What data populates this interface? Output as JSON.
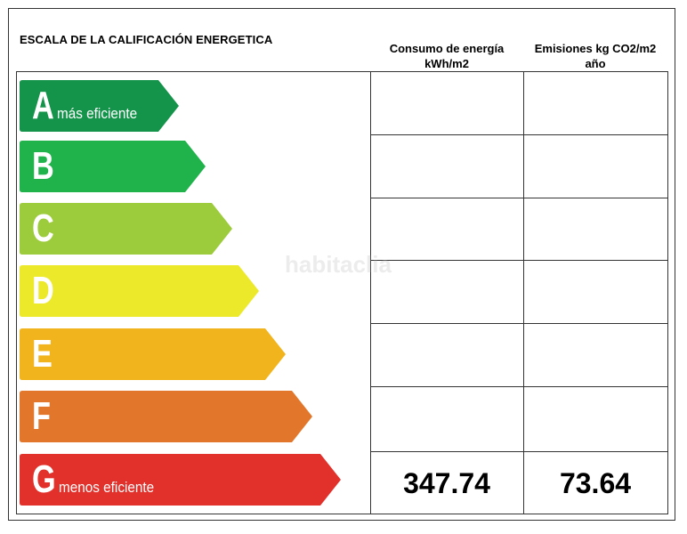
{
  "title": "ESCALA DE LA CALIFICACIÓN ENERGETICA",
  "headers": {
    "consumo": "Consumo de energía kWh/m2",
    "emisiones": "Emisiones kg CO2/m2 año"
  },
  "bands": [
    {
      "letter": "A",
      "sub": "más eficiente",
      "color": "#14934a"
    },
    {
      "letter": "B",
      "sub": "",
      "color": "#20b24b"
    },
    {
      "letter": "C",
      "sub": "",
      "color": "#9ccb3b"
    },
    {
      "letter": "D",
      "sub": "",
      "color": "#ece82a"
    },
    {
      "letter": "E",
      "sub": "",
      "color": "#f1b41c"
    },
    {
      "letter": "F",
      "sub": "",
      "color": "#e2772b"
    },
    {
      "letter": "G",
      "sub": "menos eficiente",
      "color": "#e2302b"
    }
  ],
  "values": {
    "consumo": "347.74",
    "emisiones": "73.64"
  },
  "watermark": "habitaclia"
}
